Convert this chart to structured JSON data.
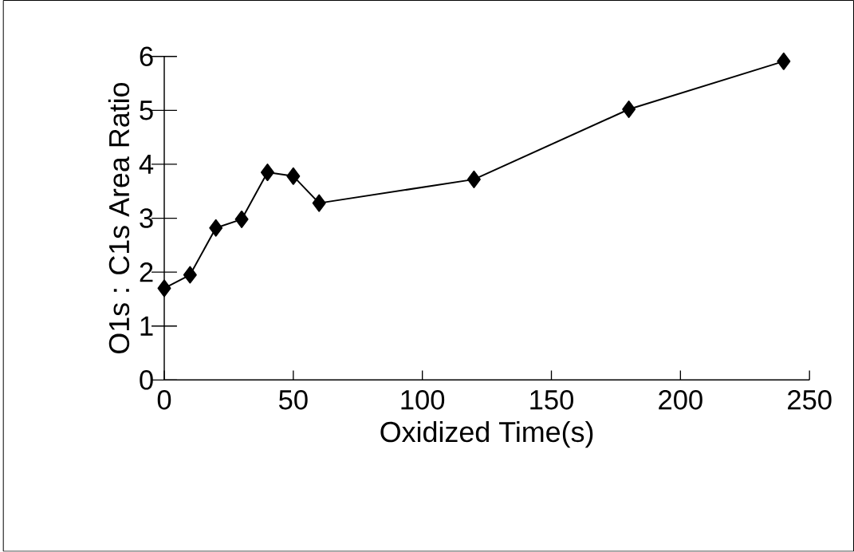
{
  "chart_data": {
    "type": "line",
    "xlabel": "Oxidized Time(s)",
    "ylabel": "O1s : C1s Area Ratio",
    "x": [
      0,
      10,
      20,
      30,
      40,
      50,
      60,
      120,
      180,
      240
    ],
    "values": [
      1.7,
      1.95,
      2.82,
      2.98,
      3.85,
      3.78,
      3.28,
      3.72,
      5.02,
      5.91
    ],
    "color": "#000000",
    "marker": "diamond",
    "line_style": "solid",
    "grid": false,
    "legend": false,
    "xlim": [
      0,
      250
    ],
    "ylim": [
      0,
      6
    ],
    "xticks": [
      0,
      50,
      100,
      150,
      200,
      250
    ],
    "yticks": [
      0,
      1,
      2,
      3,
      4,
      5,
      6
    ]
  }
}
